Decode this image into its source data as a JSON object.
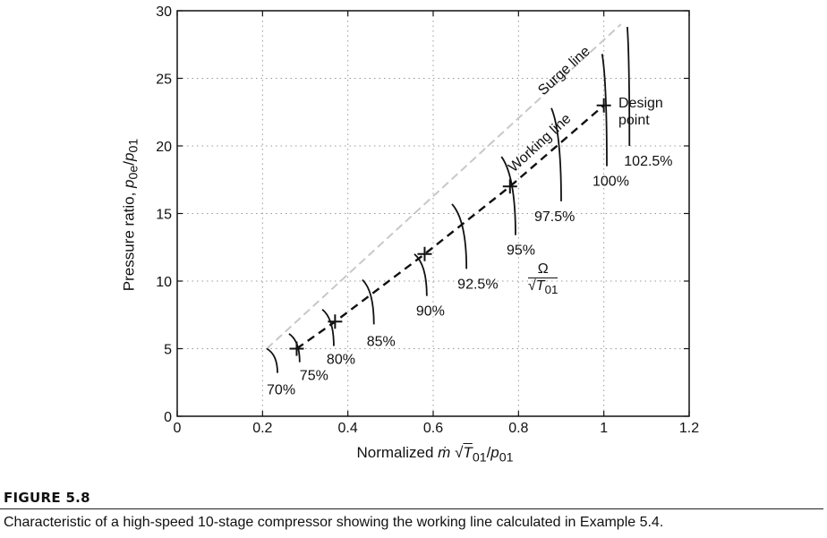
{
  "chart_data": {
    "type": "line",
    "xlabel": {
      "prefix": "Normalized ",
      "mdot": "ṁ",
      "sqrt": "√",
      "T": "T",
      "T_sub": "01",
      "slash": "/",
      "p": "p",
      "p_sub": "01"
    },
    "ylabel": {
      "prefix": "Pressure ratio, ",
      "p1": "p",
      "p1_sub": "0e",
      "slash": "/",
      "p2": "p",
      "p2_sub": "01"
    },
    "xlim": [
      0,
      1.2
    ],
    "ylim": [
      0,
      30
    ],
    "xticks": [
      "0",
      "0.2",
      "0.4",
      "0.6",
      "0.8",
      "1",
      "1.2"
    ],
    "yticks": [
      "0",
      "5",
      "10",
      "15",
      "20",
      "25",
      "30"
    ],
    "grid": true,
    "surge_line": {
      "label": "Surge line",
      "color": "#c8c8c8",
      "style": "dashed",
      "points": [
        [
          0.21,
          5.0
        ],
        [
          1.04,
          29.0
        ]
      ]
    },
    "working_line": {
      "label": "Working line",
      "color": "#111111",
      "style": "dashed",
      "points": [
        [
          0.28,
          5.0
        ],
        [
          0.37,
          7.0
        ],
        [
          0.58,
          12.0
        ],
        [
          0.78,
          17.0
        ],
        [
          1.0,
          23.0
        ]
      ]
    },
    "markers": [
      [
        0.28,
        5.0
      ],
      [
        0.37,
        7.0
      ],
      [
        0.58,
        12.0
      ],
      [
        0.78,
        17.0
      ],
      [
        1.0,
        23.0
      ]
    ],
    "speed_lines": [
      {
        "label": "70%",
        "top": [
          0.21,
          5.0
        ],
        "bottom": [
          0.235,
          3.2
        ]
      },
      {
        "label": "75%",
        "top": [
          0.262,
          6.1
        ],
        "bottom": [
          0.287,
          4.0
        ]
      },
      {
        "label": "80%",
        "top": [
          0.34,
          7.9
        ],
        "bottom": [
          0.367,
          5.2
        ]
      },
      {
        "label": "85%",
        "top": [
          0.434,
          10.1
        ],
        "bottom": [
          0.461,
          6.8
        ]
      },
      {
        "label": "90%",
        "top": [
          0.556,
          12.0
        ],
        "bottom": [
          0.585,
          8.9
        ]
      },
      {
        "label": "92.5%",
        "top": [
          0.644,
          15.7
        ],
        "bottom": [
          0.678,
          10.9
        ]
      },
      {
        "label": "95%",
        "top": [
          0.76,
          19.2
        ],
        "bottom": [
          0.793,
          13.4
        ]
      },
      {
        "label": "97.5%",
        "top": [
          0.877,
          22.8
        ],
        "bottom": [
          0.9,
          15.9
        ]
      },
      {
        "label": "100%",
        "top": [
          0.996,
          26.8
        ],
        "bottom": [
          1.007,
          18.5
        ]
      },
      {
        "label": "102.5%",
        "top": [
          1.055,
          28.8
        ],
        "bottom": [
          1.06,
          20.0
        ]
      }
    ],
    "annotations": {
      "design_point_1": "Design",
      "design_point_2": "point"
    },
    "speed_param": {
      "num": "Ω",
      "sqrt": "√",
      "T": "T",
      "T_sub": "01"
    }
  },
  "figure": {
    "title": "FIGURE 5.8",
    "caption": "Characteristic of a high-speed 10-stage compressor showing the working line calculated in Example 5.4."
  }
}
